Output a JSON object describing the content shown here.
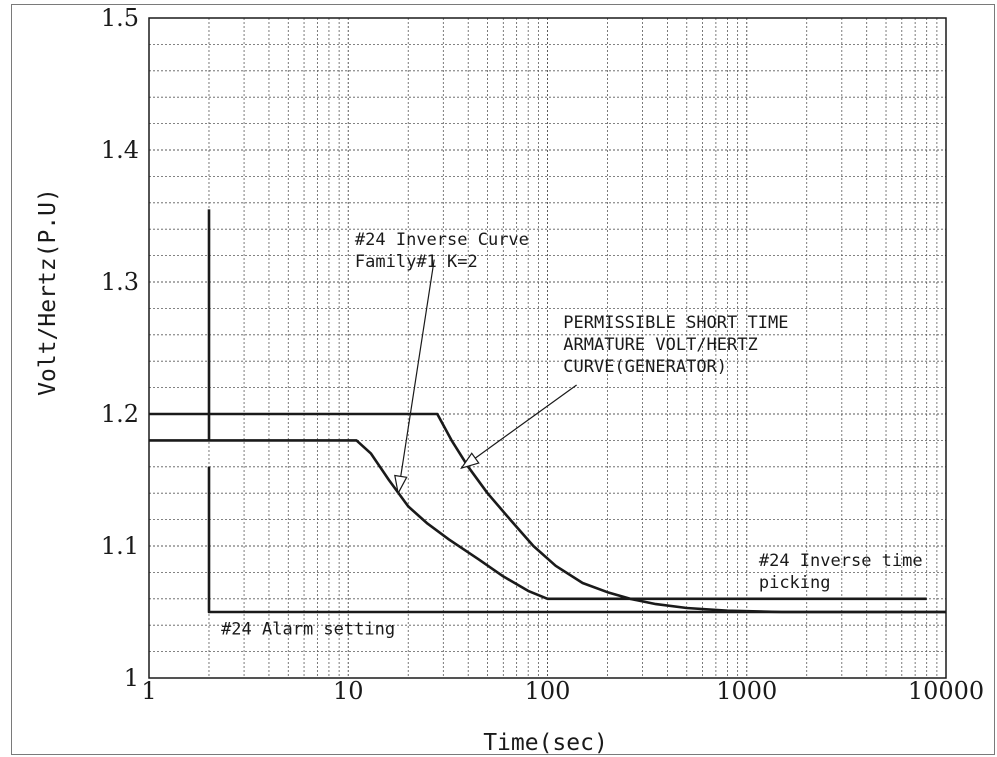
{
  "chart_data": {
    "type": "line",
    "title": "",
    "xlabel": "Time(sec)",
    "ylabel": "Volt/Hertz(P.U)",
    "x_scale": "log",
    "xlim": [
      1,
      10000
    ],
    "ylim": [
      1,
      1.5
    ],
    "grid": true,
    "x_ticks": [
      "1",
      "10",
      "100",
      "1000",
      "10000"
    ],
    "y_ticks": [
      "1",
      "1.1",
      "1.2",
      "1.3",
      "1.4",
      "1.5"
    ],
    "series": [
      {
        "points": [
          [
            1,
            1.2
          ],
          [
            28,
            1.2
          ],
          [
            33,
            1.18
          ],
          [
            40,
            1.16
          ],
          [
            50,
            1.14
          ],
          [
            65,
            1.12
          ],
          [
            85,
            1.1
          ],
          [
            110,
            1.085
          ],
          [
            150,
            1.072
          ],
          [
            200,
            1.065
          ],
          [
            260,
            1.06
          ],
          [
            350,
            1.056
          ],
          [
            500,
            1.053
          ],
          [
            800,
            1.051
          ],
          [
            1500,
            1.05
          ],
          [
            10000,
            1.05
          ]
        ]
      },
      {
        "points": [
          [
            1,
            1.18
          ],
          [
            11,
            1.18
          ],
          [
            13,
            1.17
          ],
          [
            16,
            1.15
          ],
          [
            20,
            1.13
          ],
          [
            25,
            1.117
          ],
          [
            32,
            1.105
          ],
          [
            45,
            1.09
          ],
          [
            60,
            1.077
          ],
          [
            80,
            1.066
          ],
          [
            100,
            1.06
          ],
          [
            1000,
            1.06
          ],
          [
            8000,
            1.06
          ]
        ]
      },
      {
        "points": [
          [
            2,
            1.355
          ],
          [
            2,
            1.18
          ]
        ]
      },
      {
        "points": [
          [
            2,
            1.16
          ],
          [
            2,
            1.05
          ],
          [
            100,
            1.05
          ],
          [
            10000,
            1.05
          ]
        ]
      }
    ],
    "annotations": [
      {
        "lines": [
          "#24 Inverse Curve",
          "Family#1  K=2"
        ],
        "text_at": [
          10.8,
          1.328
        ],
        "arrow_from": [
          27,
          1.317
        ],
        "arrow_to": [
          17.8,
          1.14
        ]
      },
      {
        "lines": [
          "PERMISSIBLE SHORT TIME",
          "ARMATURE VOLT/HERTZ",
          "CURVE(GENERATOR)"
        ],
        "text_at": [
          120,
          1.265
        ],
        "arrow_from": [
          140,
          1.222
        ],
        "arrow_to": [
          37,
          1.159
        ]
      },
      {
        "lines": [
          "#24 Inverse time",
          "picking"
        ],
        "text_at": [
          1150,
          1.085
        ]
      },
      {
        "lines": [
          "#24 Alarm setting"
        ],
        "text_at": [
          2.3,
          1.033
        ]
      }
    ]
  }
}
